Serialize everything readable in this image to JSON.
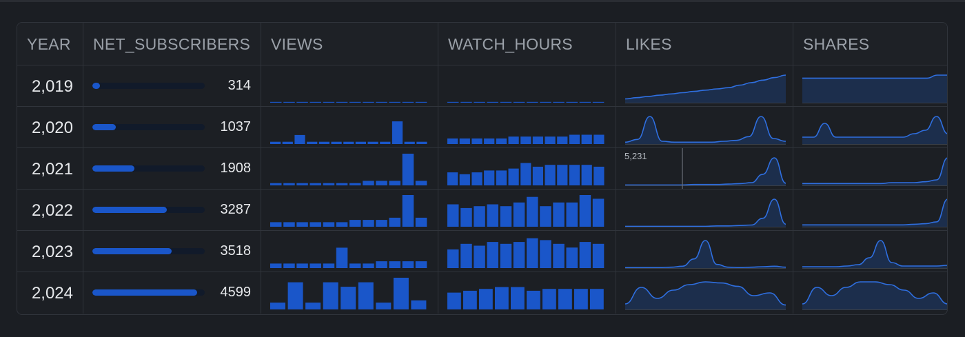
{
  "table": {
    "headers": [
      "YEAR",
      "NET_SUBSCRIBERS",
      "VIEWS",
      "WATCH_HOURS",
      "LIKES",
      "SHARES"
    ],
    "rows": [
      {
        "year": "2,019",
        "subs": "314",
        "subs_frac": 0.068,
        "views": [
          0.3,
          0.3,
          0.3,
          0.3,
          0.3,
          0.3,
          0.3,
          0.3,
          0.3,
          0.3,
          0.3,
          0.3
        ],
        "watch": [
          0.3,
          0.3,
          0.3,
          0.3,
          0.3,
          0.3,
          0.3,
          0.3,
          0.3,
          0.3,
          0.3,
          0.3
        ],
        "likes": [
          3,
          4,
          5,
          6,
          7,
          8,
          9,
          10,
          11,
          12,
          14,
          16,
          18,
          20,
          22
        ],
        "shares": [
          8,
          8,
          8,
          8,
          8,
          8,
          8,
          8,
          8,
          8,
          8,
          8,
          8,
          9,
          9
        ]
      },
      {
        "year": "2,020",
        "subs": "1037",
        "subs_frac": 0.21,
        "views": [
          1,
          1,
          4,
          1,
          1,
          1,
          1,
          1,
          1,
          1,
          10,
          1,
          1
        ],
        "watch": [
          3,
          3,
          3,
          3,
          3,
          4,
          4,
          4,
          4,
          4,
          5,
          5,
          5
        ],
        "likes": [
          2,
          5,
          30,
          3,
          2,
          2,
          2,
          2,
          3,
          4,
          8,
          30,
          6,
          3
        ],
        "shares": [
          2,
          2,
          6,
          2,
          2,
          2,
          2,
          2,
          2,
          2,
          3,
          4,
          8,
          3
        ]
      },
      {
        "year": "2,021",
        "subs": "1908",
        "subs_frac": 0.375,
        "views": [
          1,
          1,
          1,
          1,
          1,
          1,
          1,
          2,
          2,
          2,
          14,
          2
        ],
        "watch": [
          7,
          6,
          7,
          8,
          8,
          9,
          12,
          10,
          11,
          11,
          11,
          11,
          10
        ],
        "likes": [
          1,
          1,
          1,
          1,
          1,
          1,
          2,
          2,
          2,
          3,
          4,
          6,
          25,
          62,
          5
        ],
        "shares": [
          2,
          2,
          2,
          2,
          2,
          2,
          2,
          2,
          3,
          3,
          3,
          4,
          6,
          30
        ],
        "tooltip": "5,231"
      },
      {
        "year": "2,022",
        "subs": "3287",
        "subs_frac": 0.66,
        "views": [
          2,
          2,
          2,
          2,
          2,
          2,
          3,
          3,
          3,
          4,
          14,
          4
        ],
        "watch": [
          12,
          10,
          11,
          12,
          11,
          13,
          16,
          11,
          13,
          13,
          17,
          15
        ],
        "likes": [
          1,
          1,
          1,
          1,
          1,
          1,
          1,
          1,
          2,
          2,
          3,
          4,
          20,
          65,
          6
        ],
        "shares": [
          3,
          3,
          3,
          3,
          3,
          3,
          3,
          3,
          3,
          3,
          4,
          5,
          8,
          45
        ]
      },
      {
        "year": "2,023",
        "subs": "3518",
        "subs_frac": 0.705,
        "views": [
          2,
          2,
          2,
          2,
          2,
          9,
          2,
          2,
          3,
          3,
          3,
          3
        ],
        "watch": [
          10,
          13,
          12,
          14,
          13,
          14,
          16,
          15,
          13,
          11,
          14,
          13
        ],
        "likes": [
          1,
          1,
          1,
          1,
          2,
          4,
          20,
          60,
          8,
          2,
          1,
          2,
          3,
          4,
          2
        ],
        "shares": [
          2,
          2,
          2,
          2,
          3,
          5,
          15,
          40,
          8,
          3,
          3,
          3,
          3,
          4
        ]
      },
      {
        "year": "2,024",
        "subs": "4599",
        "subs_frac": 0.93,
        "views": [
          3,
          12,
          3,
          12,
          10,
          12,
          3,
          14,
          4
        ],
        "watch": [
          9,
          10,
          11,
          12,
          12,
          10,
          11,
          11,
          11,
          11
        ],
        "likes": [
          10,
          40,
          20,
          35,
          45,
          50,
          48,
          42,
          25,
          30,
          8
        ],
        "shares": [
          10,
          40,
          25,
          40,
          50,
          50,
          45,
          35,
          20,
          30,
          10
        ]
      }
    ]
  },
  "colors": {
    "accent": "#1a56c9",
    "line": "#2f6fe0",
    "area": "#1e3a6e"
  }
}
